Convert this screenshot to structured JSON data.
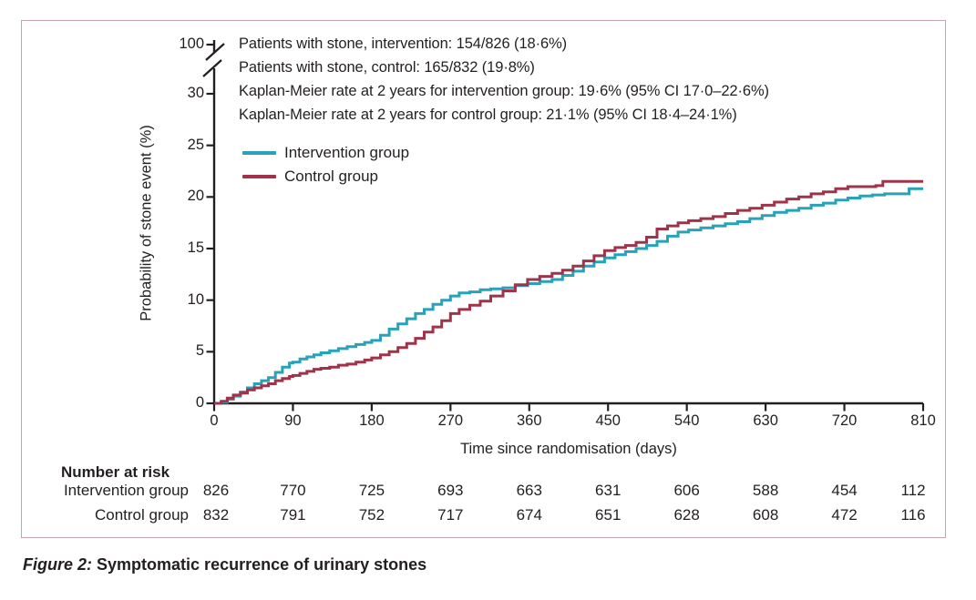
{
  "figure": {
    "caption_prefix": "Figure 2:",
    "caption_text": "Symptomatic recurrence of urinary stones"
  },
  "colors": {
    "intervention": "#27a2b8",
    "control": "#9e3349",
    "frame": "#c9a3b2",
    "axis": "#231f20",
    "text": "#231f20"
  },
  "chart_data": {
    "type": "line",
    "subtype": "kaplan-meier-step",
    "xlabel": "Time since randomisation (days)",
    "ylabel": "Probability of stone event (%)",
    "x_ticks": [
      0,
      90,
      180,
      270,
      360,
      450,
      540,
      630,
      720,
      810
    ],
    "y_ticks": [
      0,
      5,
      10,
      15,
      20,
      25,
      30
    ],
    "y_axis_break": true,
    "y_break_upper_label": 100,
    "xlim": [
      0,
      810
    ],
    "ylim": [
      0,
      32
    ],
    "grid": false,
    "legend_position": "upper-left-inside",
    "annotations": [
      "Patients with stone, intervention: 154/826 (18·6%)",
      "Patients with stone, control: 165/832 (19·8%)",
      "Kaplan-Meier rate at 2 years for intervention group: 19·6% (95% CI 17·0–22·6%)",
      "Kaplan-Meier rate at 2 years for control group: 21·1% (95% CI 18·4–24·1%)"
    ],
    "series": [
      {
        "name": "Intervention group",
        "color_key": "intervention",
        "points": [
          [
            0,
            0
          ],
          [
            8,
            0.1
          ],
          [
            15,
            0.4
          ],
          [
            22,
            0.7
          ],
          [
            30,
            1.1
          ],
          [
            38,
            1.5
          ],
          [
            46,
            1.9
          ],
          [
            54,
            2.2
          ],
          [
            62,
            2.5
          ],
          [
            70,
            3.0
          ],
          [
            78,
            3.5
          ],
          [
            86,
            3.9
          ],
          [
            90,
            4.0
          ],
          [
            98,
            4.3
          ],
          [
            106,
            4.5
          ],
          [
            114,
            4.7
          ],
          [
            122,
            4.9
          ],
          [
            132,
            5.1
          ],
          [
            142,
            5.3
          ],
          [
            152,
            5.5
          ],
          [
            162,
            5.7
          ],
          [
            172,
            5.9
          ],
          [
            180,
            6.1
          ],
          [
            190,
            6.6
          ],
          [
            200,
            7.2
          ],
          [
            210,
            7.7
          ],
          [
            220,
            8.2
          ],
          [
            230,
            8.7
          ],
          [
            240,
            9.1
          ],
          [
            250,
            9.6
          ],
          [
            260,
            10.0
          ],
          [
            270,
            10.4
          ],
          [
            280,
            10.7
          ],
          [
            292,
            10.8
          ],
          [
            304,
            11.0
          ],
          [
            316,
            11.1
          ],
          [
            330,
            11.2
          ],
          [
            344,
            11.4
          ],
          [
            358,
            11.6
          ],
          [
            372,
            11.8
          ],
          [
            386,
            12.0
          ],
          [
            398,
            12.4
          ],
          [
            410,
            12.8
          ],
          [
            422,
            13.3
          ],
          [
            434,
            13.7
          ],
          [
            446,
            14.1
          ],
          [
            458,
            14.4
          ],
          [
            470,
            14.7
          ],
          [
            482,
            15.0
          ],
          [
            494,
            15.3
          ],
          [
            506,
            15.7
          ],
          [
            518,
            16.2
          ],
          [
            530,
            16.6
          ],
          [
            542,
            16.8
          ],
          [
            556,
            17.0
          ],
          [
            570,
            17.2
          ],
          [
            584,
            17.4
          ],
          [
            598,
            17.6
          ],
          [
            612,
            17.9
          ],
          [
            626,
            18.2
          ],
          [
            640,
            18.5
          ],
          [
            654,
            18.7
          ],
          [
            668,
            18.9
          ],
          [
            682,
            19.2
          ],
          [
            696,
            19.4
          ],
          [
            710,
            19.7
          ],
          [
            724,
            19.9
          ],
          [
            738,
            20.1
          ],
          [
            752,
            20.2
          ],
          [
            766,
            20.3
          ],
          [
            780,
            20.3
          ],
          [
            794,
            20.8
          ],
          [
            810,
            20.8
          ]
        ]
      },
      {
        "name": "Control group",
        "color_key": "control",
        "points": [
          [
            0,
            0
          ],
          [
            8,
            0.2
          ],
          [
            15,
            0.5
          ],
          [
            22,
            0.8
          ],
          [
            30,
            1.0
          ],
          [
            38,
            1.3
          ],
          [
            46,
            1.5
          ],
          [
            54,
            1.7
          ],
          [
            62,
            1.9
          ],
          [
            70,
            2.2
          ],
          [
            78,
            2.4
          ],
          [
            86,
            2.6
          ],
          [
            90,
            2.7
          ],
          [
            98,
            2.9
          ],
          [
            106,
            3.1
          ],
          [
            114,
            3.3
          ],
          [
            122,
            3.4
          ],
          [
            132,
            3.5
          ],
          [
            142,
            3.7
          ],
          [
            152,
            3.8
          ],
          [
            162,
            4.0
          ],
          [
            172,
            4.2
          ],
          [
            180,
            4.4
          ],
          [
            190,
            4.7
          ],
          [
            200,
            5.0
          ],
          [
            210,
            5.4
          ],
          [
            220,
            5.8
          ],
          [
            230,
            6.3
          ],
          [
            240,
            6.9
          ],
          [
            250,
            7.4
          ],
          [
            260,
            8.0
          ],
          [
            270,
            8.7
          ],
          [
            280,
            9.1
          ],
          [
            292,
            9.5
          ],
          [
            304,
            9.9
          ],
          [
            316,
            10.4
          ],
          [
            330,
            10.9
          ],
          [
            344,
            11.5
          ],
          [
            358,
            12.0
          ],
          [
            372,
            12.3
          ],
          [
            386,
            12.6
          ],
          [
            398,
            12.9
          ],
          [
            410,
            13.3
          ],
          [
            422,
            13.8
          ],
          [
            434,
            14.3
          ],
          [
            446,
            14.8
          ],
          [
            458,
            15.1
          ],
          [
            470,
            15.3
          ],
          [
            482,
            15.6
          ],
          [
            494,
            16.1
          ],
          [
            506,
            16.9
          ],
          [
            518,
            17.2
          ],
          [
            530,
            17.5
          ],
          [
            542,
            17.7
          ],
          [
            556,
            17.9
          ],
          [
            570,
            18.1
          ],
          [
            584,
            18.4
          ],
          [
            598,
            18.7
          ],
          [
            612,
            18.9
          ],
          [
            626,
            19.2
          ],
          [
            640,
            19.5
          ],
          [
            654,
            19.8
          ],
          [
            668,
            20.0
          ],
          [
            682,
            20.3
          ],
          [
            696,
            20.5
          ],
          [
            710,
            20.8
          ],
          [
            724,
            21.0
          ],
          [
            740,
            21.0
          ],
          [
            756,
            21.1
          ],
          [
            764,
            21.5
          ],
          [
            810,
            21.5
          ]
        ]
      }
    ],
    "number_at_risk": {
      "heading": "Number at risk",
      "rows": [
        {
          "label": "Intervention group",
          "values": [
            826,
            770,
            725,
            693,
            663,
            631,
            606,
            588,
            454,
            112
          ]
        },
        {
          "label": "Control group",
          "values": [
            832,
            791,
            752,
            717,
            674,
            651,
            628,
            608,
            472,
            116
          ]
        }
      ]
    }
  }
}
